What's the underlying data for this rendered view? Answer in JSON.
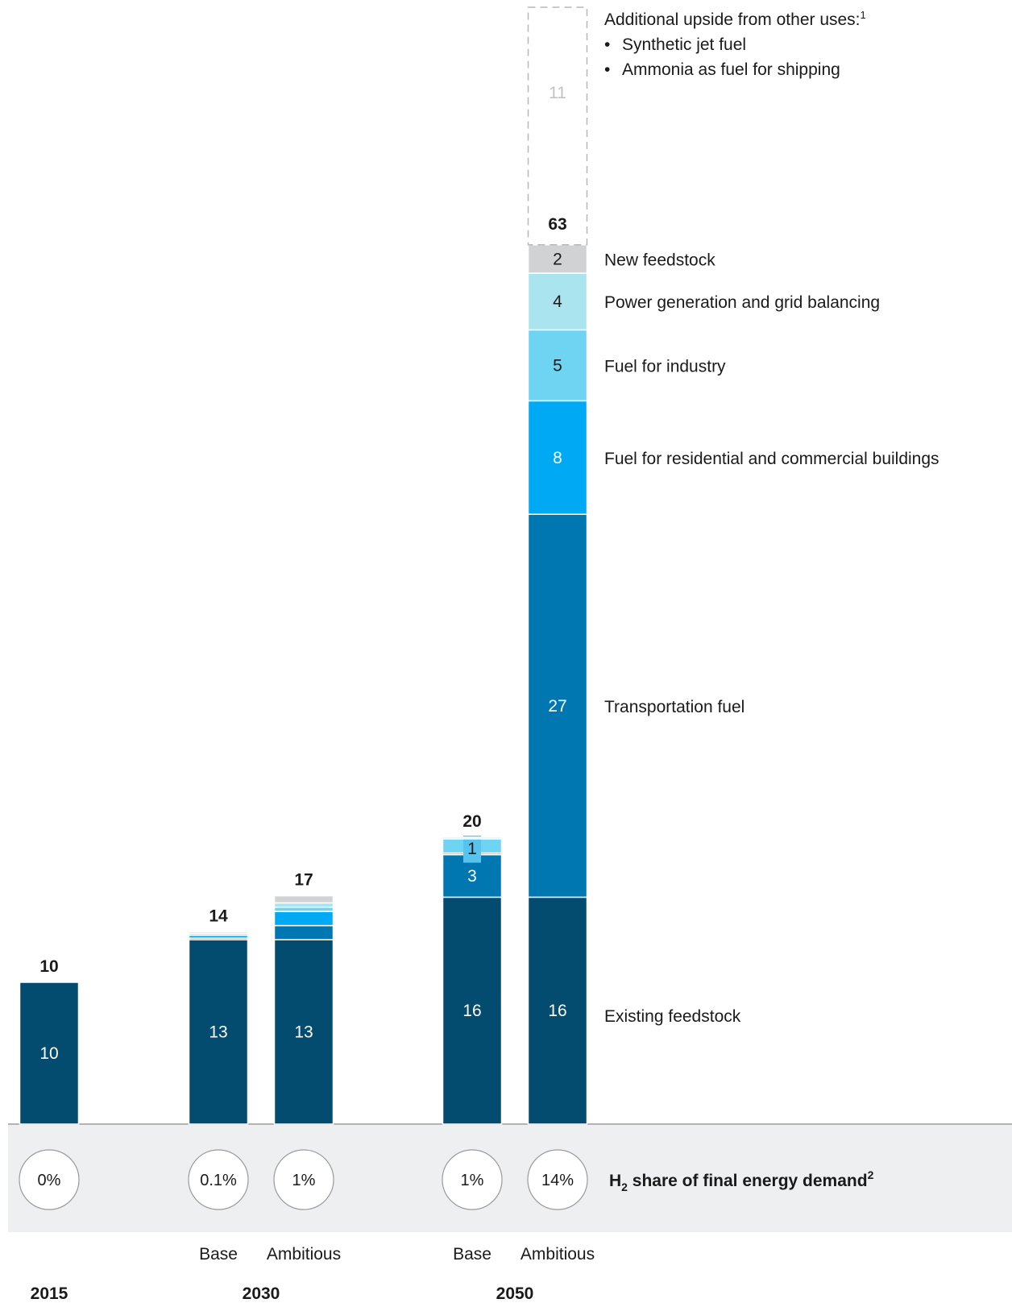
{
  "chart_data": {
    "type": "bar",
    "stacked": true,
    "bars": [
      {
        "year": "2015",
        "scenario": "",
        "total": 10,
        "share": "0%",
        "segments": {
          "existing_feedstock": 10
        }
      },
      {
        "year": "2030",
        "scenario": "Base",
        "total": 14,
        "share": "0.1%",
        "segments": {
          "existing_feedstock": 13,
          "transportation_fuel": 0.1,
          "buildings_fuel": 0.2,
          "industry_fuel": 0.05,
          "power_generation": 0.05,
          "new_feedstock": 0
        }
      },
      {
        "year": "2030",
        "scenario": "Ambitious",
        "total": 17,
        "share": "1%",
        "segments": {
          "existing_feedstock": 13,
          "transportation_fuel": 1,
          "buildings_fuel": 1,
          "industry_fuel": 0.3,
          "power_generation": 0.3,
          "new_feedstock": 0.5
        }
      },
      {
        "year": "2050",
        "scenario": "Base",
        "total": 20,
        "share": "1%",
        "segments": {
          "existing_feedstock": 16,
          "transportation_fuel": 3,
          "buildings_fuel": 0.1,
          "industry_fuel": 1,
          "power_generation": 0.1,
          "new_feedstock": 0
        }
      },
      {
        "year": "2050",
        "scenario": "Ambitious",
        "total": 63,
        "share": "14%",
        "upside": 11,
        "segments": {
          "existing_feedstock": 16,
          "transportation_fuel": 27,
          "buildings_fuel": 8,
          "industry_fuel": 5,
          "power_generation": 4,
          "new_feedstock": 2
        }
      }
    ],
    "segment_labels": {
      "2015": {
        "existing_feedstock": "10"
      },
      "2030-Base": {
        "existing_feedstock": "13"
      },
      "2030-Ambitious": {
        "existing_feedstock": "13"
      },
      "2050-Base": {
        "existing_feedstock": "16",
        "transportation_fuel": "3",
        "industry_fuel": "1"
      },
      "2050-Ambitious": {
        "existing_feedstock": "16",
        "transportation_fuel": "27",
        "buildings_fuel": "8",
        "industry_fuel": "5",
        "power_generation": "4",
        "new_feedstock": "2"
      }
    },
    "series": [
      {
        "key": "existing_feedstock",
        "name": "Existing feedstock",
        "color": "#034b6f"
      },
      {
        "key": "transportation_fuel",
        "name": "Transportation fuel",
        "color": "#0077b0"
      },
      {
        "key": "buildings_fuel",
        "name": "Fuel for residential and commercial buildings",
        "color": "#00a9f4"
      },
      {
        "key": "industry_fuel",
        "name": "Fuel for industry",
        "color": "#6fd3f2"
      },
      {
        "key": "power_generation",
        "name": "Power generation and grid balancing",
        "color": "#a9e4ef"
      },
      {
        "key": "new_feedstock",
        "name": "New feedstock",
        "color": "#d0d2d4"
      }
    ],
    "upside": {
      "value": 11,
      "title": "Additional upside from other uses:",
      "footnote_mark": "1",
      "bullets": [
        "Synthetic jet fuel",
        "Ammonia as fuel for shipping"
      ]
    },
    "share_row": {
      "label_prefix": "H",
      "label_sub": "2",
      "label_main": " share of final energy demand",
      "footnote_mark": "2"
    },
    "scenario_labels": [
      "Base",
      "Ambitious"
    ],
    "year_labels": [
      "2015",
      "2030",
      "2050"
    ],
    "ylim": [
      0,
      63
    ]
  }
}
